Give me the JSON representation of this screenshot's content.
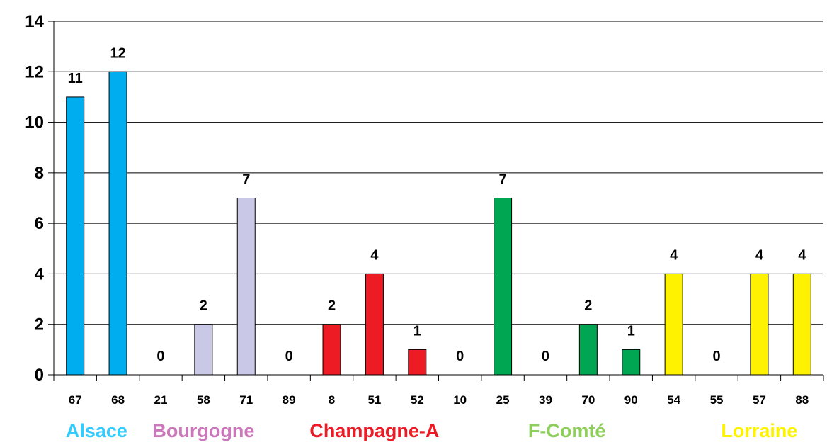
{
  "chart_data": {
    "type": "bar",
    "categories": [
      "67",
      "68",
      "21",
      "58",
      "71",
      "89",
      "8",
      "51",
      "52",
      "10",
      "25",
      "39",
      "70",
      "90",
      "54",
      "55",
      "57",
      "88"
    ],
    "values": [
      11,
      12,
      0,
      2,
      7,
      0,
      2,
      4,
      1,
      0,
      7,
      0,
      2,
      1,
      4,
      0,
      4,
      4
    ],
    "bar_colors": [
      "#00aeef",
      "#00aeef",
      "#c9c8e6",
      "#c9c8e6",
      "#c9c8e6",
      "#ed1c24",
      "#ed1c24",
      "#ed1c24",
      "#ed1c24",
      "#00a651",
      "#00a651",
      "#00a651",
      "#00a651",
      "#00a651",
      "#fff200",
      "#fff200",
      "#fff200",
      "#fff200"
    ],
    "data_labels": [
      "11",
      "12",
      "0",
      "2",
      "7",
      "0",
      "2",
      "4",
      "1",
      "0",
      "7",
      "0",
      "2",
      "1",
      "4",
      "0",
      "4",
      "4"
    ],
    "ylim": [
      0,
      14
    ],
    "yticks": [
      "0",
      "2",
      "4",
      "6",
      "8",
      "10",
      "12",
      "14"
    ],
    "grid": true,
    "regions": [
      {
        "label": "Alsace",
        "color": "#33ccff",
        "first": 0,
        "last": 1
      },
      {
        "label": "Bourgogne",
        "color": "#cc77bb",
        "first": 2,
        "last": 4
      },
      {
        "label": "Champagne-A",
        "color": "#ed1c24",
        "first": 6,
        "last": 8
      },
      {
        "label": "F-Comté",
        "color": "#8dcf5a",
        "first": 10,
        "last": 13
      },
      {
        "label": "Lorraine",
        "color": "#fff200",
        "first": 15,
        "last": 17
      }
    ]
  }
}
